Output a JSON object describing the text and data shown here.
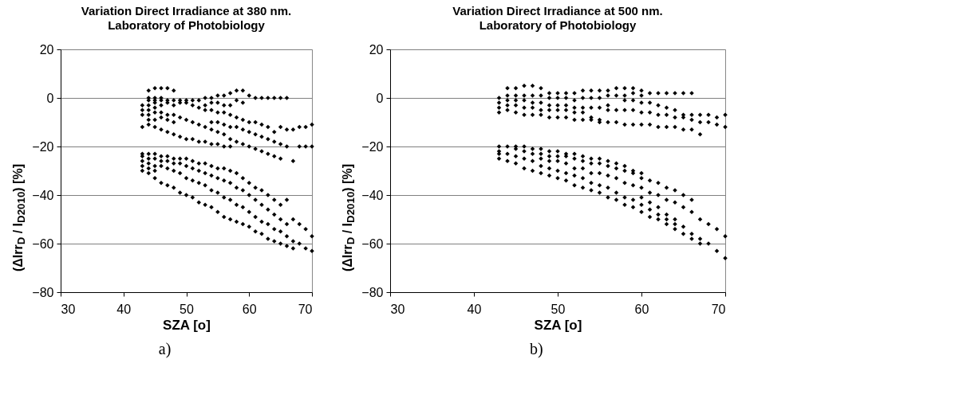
{
  "chart_data": [
    {
      "type": "scatter",
      "title": "Variation Direct Irradiance at 380 nm.",
      "subtitle": "Laboratory of Photobiology",
      "xlabel": "SZA [o]",
      "ylabel": "(ΔIrr$_{D}$ / I$_{D2010}$) [%]",
      "annotations": [
        "a)"
      ],
      "xlim": [
        30,
        70
      ],
      "xticks": [
        30,
        40,
        50,
        60,
        70
      ],
      "ylim": [
        -80,
        20
      ],
      "yticks": [
        -80,
        -60,
        -40,
        -20,
        0,
        20
      ],
      "grid": "y",
      "marker": "diamond",
      "series": [
        {
          "color": "#000000",
          "x": [
            43,
            43,
            43,
            43,
            43,
            43,
            43,
            43,
            43,
            44,
            44,
            44,
            44,
            44,
            44,
            44,
            44,
            44,
            44,
            44,
            44,
            44,
            45,
            45,
            45,
            45,
            45,
            45,
            45,
            45,
            45,
            45,
            45,
            45,
            45,
            46,
            46,
            46,
            46,
            46,
            46,
            46,
            46,
            46,
            46,
            46,
            47,
            47,
            47,
            47,
            47,
            47,
            47,
            47,
            47,
            47,
            48,
            48,
            48,
            48,
            48,
            48,
            48,
            48,
            48,
            48,
            49,
            49,
            49,
            49,
            49,
            49,
            49,
            49,
            50,
            50,
            50,
            50,
            50,
            50,
            50,
            50,
            51,
            51,
            51,
            51,
            51,
            51,
            51,
            51,
            52,
            52,
            52,
            52,
            52,
            52,
            52,
            52,
            53,
            53,
            53,
            53,
            53,
            53,
            53,
            53,
            53,
            54,
            54,
            54,
            54,
            54,
            54,
            54,
            54,
            54,
            54,
            55,
            55,
            55,
            55,
            55,
            55,
            55,
            55,
            55,
            55,
            56,
            56,
            56,
            56,
            56,
            56,
            56,
            56,
            56,
            56,
            57,
            57,
            57,
            57,
            57,
            57,
            57,
            57,
            57,
            57,
            58,
            58,
            58,
            58,
            58,
            58,
            58,
            58,
            58,
            59,
            59,
            59,
            59,
            59,
            59,
            59,
            59,
            59,
            60,
            60,
            60,
            60,
            60,
            60,
            60,
            60,
            61,
            61,
            61,
            61,
            61,
            61,
            61,
            61,
            62,
            62,
            62,
            62,
            62,
            62,
            62,
            62,
            63,
            63,
            63,
            63,
            63,
            63,
            63,
            63,
            64,
            64,
            64,
            64,
            64,
            64,
            64,
            64,
            65,
            65,
            65,
            65,
            65,
            65,
            65,
            65,
            66,
            66,
            66,
            66,
            66,
            66,
            66,
            67,
            67,
            67,
            67,
            67,
            68,
            68,
            68,
            68,
            69,
            69,
            69,
            69,
            70,
            70,
            70,
            70
          ],
          "values": [
            -3,
            -5,
            -7,
            -12,
            -23,
            -24,
            -26,
            -28,
            -30,
            3,
            0,
            -1,
            -3,
            -5,
            -7,
            -9,
            -11,
            -23,
            -25,
            -27,
            -29,
            -31,
            4,
            0,
            -1,
            -2,
            -4,
            -6,
            -9,
            -12,
            -23,
            -25,
            -28,
            -30,
            -33,
            4,
            0,
            -1,
            -3,
            -6,
            -8,
            -13,
            -24,
            -26,
            -28,
            -35,
            4,
            -1,
            -2,
            -7,
            -9,
            -14,
            -24,
            -26,
            -29,
            -36,
            3,
            -1,
            -3,
            -7,
            -10,
            -15,
            -25,
            -27,
            -30,
            -37,
            -1,
            -2,
            -8,
            -16,
            -25,
            -27,
            -31,
            -39,
            -1,
            -2,
            -9,
            -17,
            -25,
            -28,
            -33,
            -40,
            -1,
            -3,
            -10,
            -17,
            -26,
            -29,
            -34,
            -41,
            -1,
            -4,
            -11,
            -18,
            -27,
            -30,
            -35,
            -43,
            0,
            -3,
            -5,
            -12,
            -18,
            -27,
            -31,
            -36,
            -44,
            0,
            -2,
            -5,
            -10,
            -13,
            -19,
            -28,
            -32,
            -38,
            -45,
            1,
            -2,
            -6,
            -10,
            -14,
            -19,
            -29,
            -33,
            -39,
            -47,
            1,
            -3,
            -6,
            -11,
            -15,
            -20,
            -29,
            -34,
            -41,
            -49,
            2,
            -3,
            -7,
            -12,
            -17,
            -20,
            -30,
            -35,
            -42,
            -50,
            3,
            -1,
            -8,
            -12,
            -18,
            -31,
            -37,
            -44,
            -51,
            3,
            -2,
            -9,
            -13,
            -19,
            -33,
            -38,
            -45,
            -52,
            1,
            -10,
            -14,
            -20,
            -35,
            -40,
            -47,
            -53,
            0,
            -10,
            -15,
            -21,
            -37,
            -42,
            -49,
            -55,
            0,
            -11,
            -16,
            -22,
            -38,
            -44,
            -51,
            -56,
            0,
            -12,
            -17,
            -23,
            -40,
            -46,
            -52,
            -58,
            0,
            -14,
            -18,
            -24,
            -42,
            -48,
            -54,
            -59,
            0,
            -12,
            -19,
            -25,
            -44,
            -50,
            -55,
            -60,
            0,
            -13,
            -20,
            -42,
            -52,
            -57,
            -61,
            -13,
            -26,
            -50,
            -59,
            -62,
            -12,
            -20,
            -52,
            -60,
            -12,
            -20,
            -54,
            -62,
            -11,
            -20,
            -57,
            -63
          ]
        }
      ]
    },
    {
      "type": "scatter",
      "title": "Variation Direct Irradiance at 500 nm.",
      "subtitle": "Laboratory of Photobiology",
      "xlabel": "SZA [o]",
      "ylabel": "(ΔIrr$_{D}$ / I$_{D2010}$) [%]",
      "annotations": [
        "b)"
      ],
      "xlim": [
        30,
        70
      ],
      "xticks": [
        30,
        40,
        50,
        60,
        70
      ],
      "ylim": [
        -80,
        20
      ],
      "yticks": [
        -80,
        -60,
        -40,
        -20,
        0,
        20
      ],
      "grid": "y",
      "marker": "diamond",
      "series": [
        {
          "color": "#000000",
          "x": [
            43,
            43,
            43,
            43,
            43,
            43,
            43,
            43,
            44,
            44,
            44,
            44,
            44,
            44,
            44,
            44,
            45,
            45,
            45,
            45,
            45,
            45,
            45,
            45,
            45,
            46,
            46,
            46,
            46,
            46,
            46,
            46,
            46,
            46,
            47,
            47,
            47,
            47,
            47,
            47,
            47,
            47,
            47,
            48,
            48,
            48,
            48,
            48,
            48,
            48,
            48,
            48,
            48,
            49,
            49,
            49,
            49,
            49,
            49,
            49,
            49,
            49,
            49,
            50,
            50,
            50,
            50,
            50,
            50,
            50,
            50,
            50,
            50,
            51,
            51,
            51,
            51,
            51,
            51,
            51,
            51,
            51,
            51,
            52,
            52,
            52,
            52,
            52,
            52,
            52,
            52,
            52,
            52,
            53,
            53,
            53,
            53,
            53,
            53,
            53,
            53,
            53,
            53,
            54,
            54,
            54,
            54,
            54,
            54,
            54,
            54,
            54,
            54,
            55,
            55,
            55,
            55,
            55,
            55,
            55,
            55,
            55,
            55,
            56,
            56,
            56,
            56,
            56,
            56,
            56,
            56,
            56,
            56,
            57,
            57,
            57,
            57,
            57,
            57,
            57,
            57,
            57,
            58,
            58,
            58,
            58,
            58,
            58,
            58,
            58,
            58,
            58,
            59,
            59,
            59,
            59,
            59,
            59,
            59,
            59,
            59,
            59,
            60,
            60,
            60,
            60,
            60,
            60,
            60,
            60,
            60,
            60,
            60,
            61,
            61,
            61,
            61,
            61,
            61,
            61,
            61,
            61,
            62,
            62,
            62,
            62,
            62,
            62,
            62,
            62,
            62,
            63,
            63,
            63,
            63,
            63,
            63,
            63,
            63,
            63,
            64,
            64,
            64,
            64,
            64,
            64,
            64,
            64,
            64,
            65,
            65,
            65,
            65,
            65,
            65,
            65,
            65,
            66,
            66,
            66,
            66,
            66,
            66,
            66,
            66,
            67,
            67,
            67,
            67,
            67,
            67,
            68,
            68,
            68,
            68,
            69,
            69,
            69,
            69,
            70,
            70,
            70,
            70
          ],
          "values": [
            0,
            -2,
            -4,
            -6,
            -20,
            -22,
            -23,
            -25,
            4,
            1,
            -1,
            -3,
            -5,
            -20,
            -23,
            -26,
            4,
            1,
            -1,
            -3,
            -6,
            -20,
            -21,
            -24,
            -27,
            5,
            1,
            -1,
            -4,
            -7,
            -20,
            -22,
            -25,
            -29,
            5,
            1,
            -2,
            -4,
            -7,
            -21,
            -23,
            -26,
            -30,
            4,
            1,
            -2,
            -5,
            -7,
            -21,
            -23,
            -25,
            -28,
            -31,
            2,
            0,
            -3,
            -5,
            -8,
            -22,
            -24,
            -26,
            -29,
            -32,
            2,
            0,
            -3,
            -5,
            -8,
            -22,
            -24,
            -26,
            -30,
            -33,
            2,
            0,
            -3,
            -5,
            -8,
            -23,
            -24,
            -27,
            -31,
            -34,
            2,
            -1,
            -4,
            -6,
            -9,
            -23,
            -25,
            -29,
            -32,
            -36,
            3,
            0,
            -4,
            -6,
            -9,
            -24,
            -26,
            -29,
            -33,
            -37,
            3,
            0,
            -4,
            -8,
            -9,
            -25,
            -27,
            -31,
            -35,
            -38,
            3,
            0,
            -4,
            -9,
            -10,
            -25,
            -27,
            -31,
            -36,
            -39,
            3,
            1,
            -3,
            -5,
            -10,
            -26,
            -28,
            -32,
            -37,
            -41,
            4,
            1,
            -5,
            -10,
            -27,
            -29,
            -33,
            -39,
            -42,
            4,
            1,
            -1,
            -5,
            -11,
            -28,
            -30,
            -35,
            -41,
            -44,
            4,
            2,
            -1,
            -5,
            -11,
            -30,
            -31,
            -36,
            -42,
            -45,
            3,
            1,
            -2,
            -6,
            -11,
            -31,
            -33,
            -37,
            -41,
            -44,
            -47,
            2,
            -2,
            -6,
            -11,
            -34,
            -39,
            -43,
            -46,
            -49,
            2,
            -3,
            -7,
            -12,
            -35,
            -40,
            -45,
            -48,
            -50,
            2,
            -4,
            -7,
            -12,
            -37,
            -42,
            -48,
            -50,
            -52,
            2,
            -5,
            -8,
            -12,
            -38,
            -43,
            -50,
            -52,
            -54,
            2,
            -7,
            -8,
            -13,
            -40,
            -45,
            -53,
            -56,
            2,
            -7,
            -9,
            -13,
            -42,
            -47,
            -56,
            -58,
            -7,
            -10,
            -15,
            -50,
            -58,
            -60,
            -7,
            -10,
            -52,
            -60,
            -8,
            -11,
            -54,
            -63,
            -7,
            -12,
            -57,
            -66
          ]
        }
      ]
    }
  ]
}
